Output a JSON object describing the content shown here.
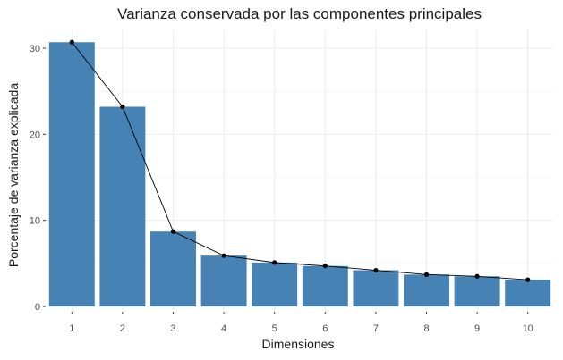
{
  "chart_data": {
    "type": "bar",
    "title": "Varianza conservada por las componentes principales",
    "xlabel": "Dimensiones",
    "ylabel": "Porcentaje de varianza explicada",
    "categories": [
      "1",
      "2",
      "3",
      "4",
      "5",
      "6",
      "7",
      "8",
      "9",
      "10"
    ],
    "values": [
      30.7,
      23.2,
      8.7,
      5.9,
      5.1,
      4.7,
      4.2,
      3.7,
      3.5,
      3.1
    ],
    "overlay": {
      "type": "line",
      "with_points": true,
      "values": [
        30.7,
        23.2,
        8.7,
        5.9,
        5.1,
        4.7,
        4.2,
        3.7,
        3.5,
        3.1
      ],
      "color": "#000000"
    },
    "yticks": [
      0,
      10,
      20,
      30
    ],
    "ylim": [
      0,
      31.5
    ],
    "grid": true,
    "legend": null,
    "colors": {
      "bar": "#4682B4",
      "line": "#000000",
      "grid": "#ebebeb",
      "background": "#ffffff"
    }
  }
}
